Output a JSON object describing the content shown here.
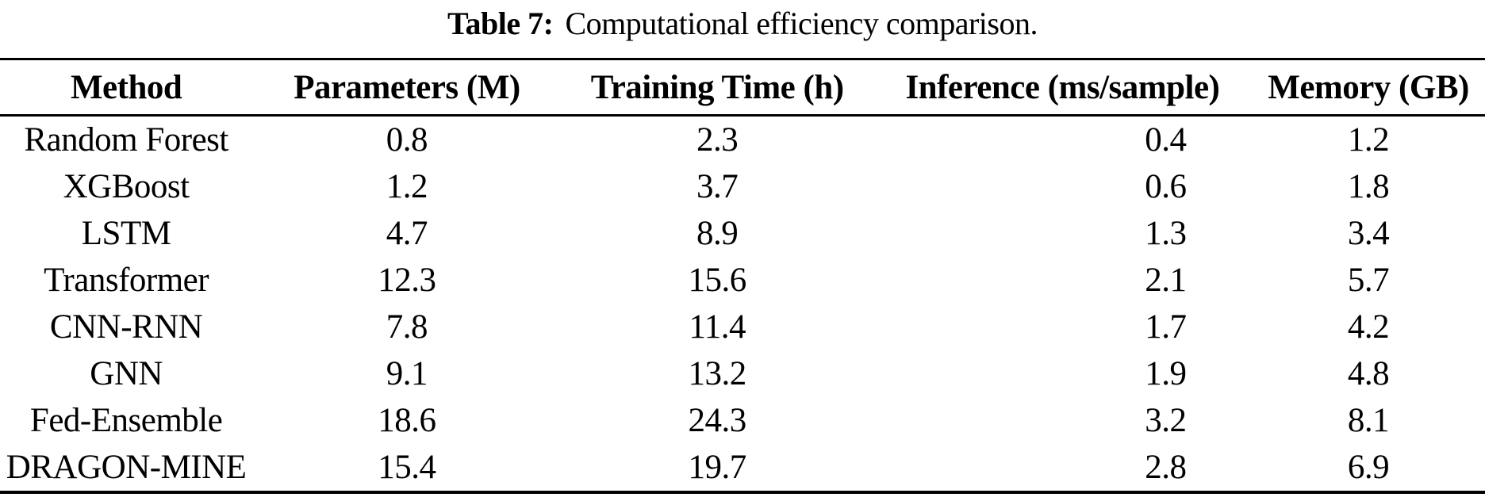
{
  "page": {
    "background_color": "#ffffff",
    "text_color": "#000000"
  },
  "table": {
    "caption": {
      "label": "Table 7:",
      "text": "Computational efficiency comparison."
    },
    "columns": [
      "Method",
      "Parameters (M)",
      "Training Time (h)",
      "Inference (ms/sample)",
      "Memory (GB)"
    ],
    "rows": [
      [
        "Random Forest",
        "0.8",
        "2.3",
        "0.4",
        "1.2"
      ],
      [
        "XGBoost",
        "1.2",
        "3.7",
        "0.6",
        "1.8"
      ],
      [
        "LSTM",
        "4.7",
        "8.9",
        "1.3",
        "3.4"
      ],
      [
        "Transformer",
        "12.3",
        "15.6",
        "2.1",
        "5.7"
      ],
      [
        "CNN-RNN",
        "7.8",
        "11.4",
        "1.7",
        "4.2"
      ],
      [
        "GNN",
        "9.1",
        "13.2",
        "1.9",
        "4.8"
      ],
      [
        "Fed-Ensemble",
        "18.6",
        "24.3",
        "3.2",
        "8.1"
      ],
      [
        "DRAGON-MINE",
        "15.4",
        "19.7",
        "2.8",
        "6.9"
      ]
    ]
  }
}
